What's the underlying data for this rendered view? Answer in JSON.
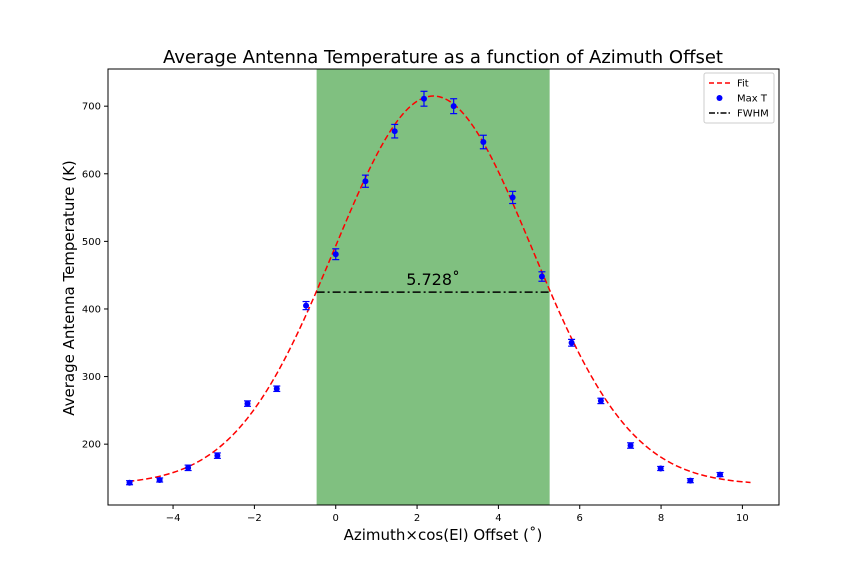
{
  "chart_data": {
    "type": "scatter",
    "title": "Average Antenna Temperature as a function of Azimuth Offset",
    "xlabel": "Azimuth×cos(El)  Offset (˚)",
    "ylabel": "Average Antenna Temperature (K)",
    "xlim": [
      -5.6,
      10.9
    ],
    "ylim": [
      110,
      755
    ],
    "xticks": [
      -4,
      -2,
      0,
      2,
      4,
      6,
      8,
      10
    ],
    "xtick_labels": [
      "−4",
      "−2",
      "0",
      "2",
      "4",
      "6",
      "8",
      "10"
    ],
    "yticks": [
      200,
      300,
      400,
      500,
      600,
      700
    ],
    "yticks_labels": [
      "200",
      "300",
      "400",
      "500",
      "600",
      "700"
    ],
    "grid": false,
    "legend_position": "top-right",
    "shaded_region": {
      "x_start": -0.47,
      "x_end": 5.26,
      "color": "#80c080"
    },
    "fwhm": {
      "x_start": -0.47,
      "x_end": 5.26,
      "y": 425,
      "label": "5.728˚"
    },
    "series": [
      {
        "name": "Fit",
        "kind": "dashed-line",
        "color": "#ff0000",
        "fit_params": {
          "amplitude": 575,
          "center": 2.4,
          "sigma": 2.432,
          "offset": 140
        },
        "x_range": [
          -5.1,
          10.2
        ]
      },
      {
        "name": "Max T",
        "kind": "points-with-errorbars",
        "color": "#0000ff",
        "x": [
          -5.07,
          -4.33,
          -3.63,
          -2.91,
          -2.17,
          -1.45,
          -0.73,
          0.0,
          0.73,
          1.45,
          2.17,
          2.9,
          3.63,
          4.35,
          5.07,
          5.8,
          6.52,
          7.25,
          7.99,
          8.72,
          9.45
        ],
        "y": [
          143,
          147,
          165,
          183,
          260,
          282,
          405,
          481,
          589,
          663,
          711,
          700,
          647,
          565,
          448,
          350,
          264,
          198,
          164,
          146,
          155
        ],
        "yerr": [
          3,
          3,
          4,
          4,
          4,
          4,
          6,
          8,
          9,
          10,
          11,
          11,
          10,
          9,
          7,
          5,
          4,
          4,
          3,
          3,
          3
        ]
      },
      {
        "name": "FWHM",
        "kind": "dashdot-line",
        "color": "#000000"
      }
    ]
  }
}
